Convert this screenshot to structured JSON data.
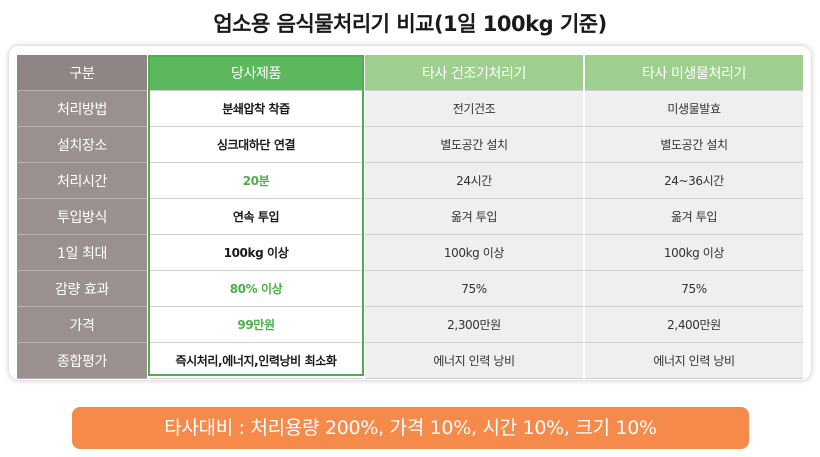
{
  "title": "업소용 음식물처리기 비교(1일 100kg 기준)",
  "table": {
    "headers": [
      "구분",
      "당사제품",
      "타사 건조기처리기",
      "타사 미생물처리기"
    ],
    "rows": [
      {
        "label": "처리방법",
        "ours": "분쇄압착 착즙",
        "dryer": "전기건조",
        "microbe": "미생물발효",
        "highlight": false
      },
      {
        "label": "설치장소",
        "ours": "싱크대하단 연결",
        "dryer": "별도공간 설치",
        "microbe": "별도공간 설치",
        "highlight": false
      },
      {
        "label": "처리시간",
        "ours": "20분",
        "dryer": "24시간",
        "microbe": "24~36시간",
        "highlight": true
      },
      {
        "label": "투입방식",
        "ours": "연속 투입",
        "dryer": "옮겨 투입",
        "microbe": "옮겨 투입",
        "highlight": false
      },
      {
        "label": "1일 최대",
        "ours": "100kg 이상",
        "dryer": "100kg 이상",
        "microbe": "100kg 이상",
        "highlight": false
      },
      {
        "label": "감량 효과",
        "ours": "80% 이상",
        "dryer": "75%",
        "microbe": "75%",
        "highlight": true
      },
      {
        "label": "가격",
        "ours": "99만원",
        "dryer": "2,300만원",
        "microbe": "2,400만원",
        "highlight": true
      },
      {
        "label": "종합평가",
        "ours": "즉시처리,에너지,인력낭비 최소화",
        "dryer": "에너지 인력 낭비",
        "microbe": "에너지 인력 낭비",
        "highlight": false
      }
    ]
  },
  "banner": "타사대비 : 처리용량 200%, 가격 10%, 시간 10%, 크기 10%",
  "colors": {
    "ours_accent": "#4cae4c",
    "header_other": "#9fcf8f",
    "row_label": "#9a9090",
    "banner": "#f58a4b"
  }
}
